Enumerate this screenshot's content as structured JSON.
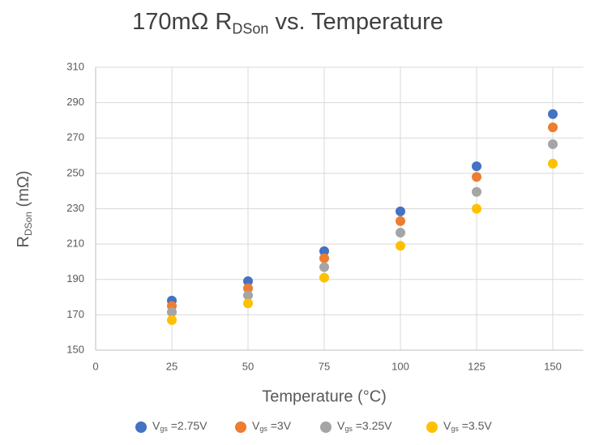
{
  "chart_data": {
    "type": "scatter",
    "title": [
      "170mΩ R",
      "DSon",
      " vs. Temperature"
    ],
    "x_label": "Temperature (°C)",
    "y_label": [
      "R",
      "DSon",
      " (mΩ)"
    ],
    "x": [
      25,
      50,
      75,
      100,
      125,
      150
    ],
    "series": [
      {
        "name": [
          "V",
          "gs",
          " =2.75V"
        ],
        "color": "#4472c4",
        "values": [
          178,
          189,
          206,
          228.5,
          254,
          283.5
        ]
      },
      {
        "name": [
          "V",
          "gs",
          " =3V"
        ],
        "color": "#ed7d31",
        "values": [
          175,
          185,
          202,
          223,
          248,
          276
        ]
      },
      {
        "name": [
          "V",
          "gs",
          " =3.25V"
        ],
        "color": "#a5a5a5",
        "values": [
          171.5,
          181,
          197,
          216.5,
          239.5,
          266.5
        ]
      },
      {
        "name": [
          "V",
          "gs",
          " =3.5V"
        ],
        "color": "#ffc000",
        "values": [
          167,
          176.5,
          191,
          209,
          230,
          255.5
        ]
      }
    ],
    "xlim": [
      0,
      160
    ],
    "xticks": [
      0,
      25,
      50,
      75,
      100,
      125,
      150
    ],
    "ylim": [
      150,
      310
    ],
    "yticks": [
      150,
      170,
      190,
      210,
      230,
      250,
      270,
      290,
      310
    ],
    "grid": true,
    "legend": "bottom"
  }
}
